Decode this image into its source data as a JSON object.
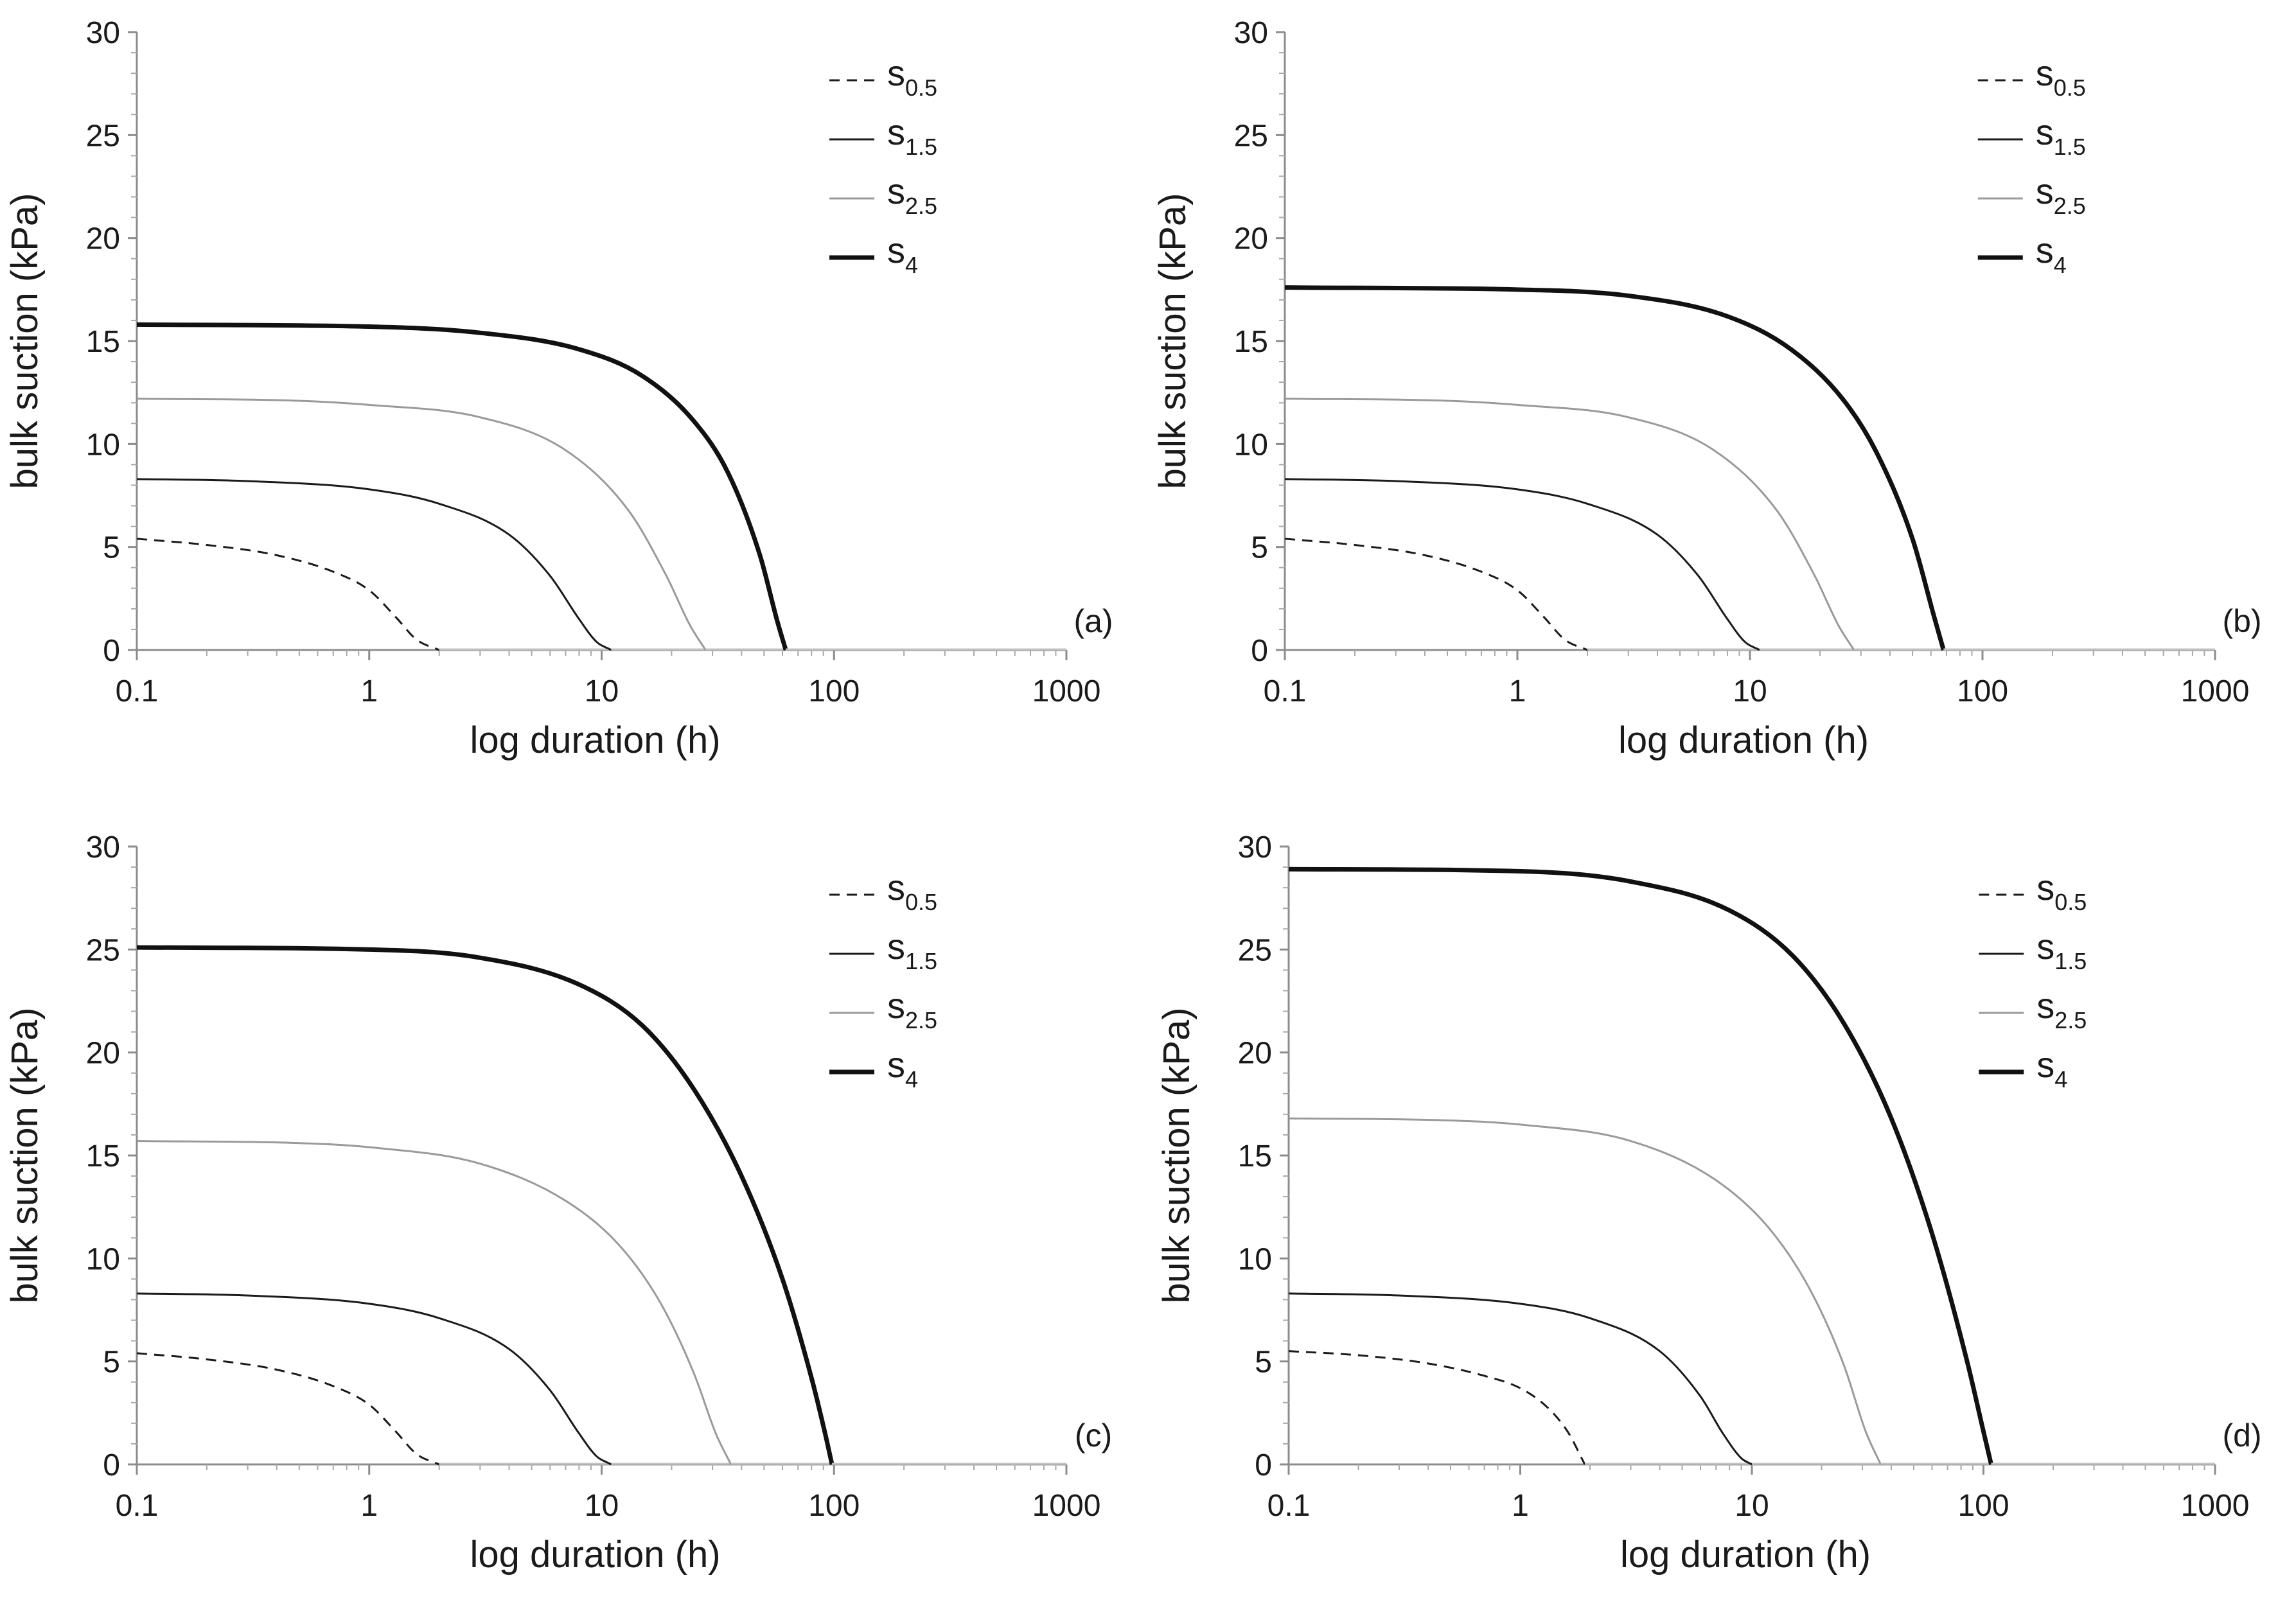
{
  "chart_data": [
    {
      "type": "line",
      "panel_label": "(a)",
      "xlabel": "log duration (h)",
      "ylabel": "bulk suction (kPa)",
      "xscale": "log",
      "xlim": [
        0.1,
        1000
      ],
      "ylim": [
        0,
        30
      ],
      "xticks": [
        "0.1",
        "1",
        "10",
        "100",
        "1000"
      ],
      "yticks": [
        "0",
        "5",
        "10",
        "15",
        "20",
        "25",
        "30"
      ],
      "legend_position": "top-right",
      "series": [
        {
          "name": "s0.5",
          "label_main": "s",
          "label_sub": "0.5",
          "style": "dashed",
          "color": "#1a1a1a",
          "width": 3,
          "x": [
            0.1,
            0.2,
            0.4,
            0.7,
            1.0,
            1.3,
            1.6,
            2.0
          ],
          "y": [
            5.4,
            5.1,
            4.6,
            3.8,
            2.9,
            1.6,
            0.5,
            0
          ]
        },
        {
          "name": "s1.5",
          "label_main": "s",
          "label_sub": "1.5",
          "style": "solid",
          "color": "#1a1a1a",
          "width": 3,
          "x": [
            0.1,
            0.3,
            1.0,
            2.0,
            4.0,
            6.0,
            8.0,
            9.5,
            11.0
          ],
          "y": [
            8.3,
            8.2,
            7.8,
            7.1,
            5.6,
            3.6,
            1.5,
            0.4,
            0
          ]
        },
        {
          "name": "s2.5",
          "label_main": "s",
          "label_sub": "2.5",
          "style": "solid",
          "color": "#9a9a9a",
          "width": 3,
          "x": [
            0.1,
            0.5,
            1.0,
            3.0,
            7.0,
            13.0,
            19.0,
            24.0,
            28.0
          ],
          "y": [
            12.2,
            12.1,
            11.9,
            11.3,
            9.7,
            6.8,
            3.6,
            1.2,
            0
          ]
        },
        {
          "name": "s4",
          "label_main": "s",
          "label_sub": "4",
          "style": "solid",
          "color": "#111111",
          "width": 7,
          "x": [
            0.1,
            1.0,
            3.0,
            8.0,
            15.0,
            25.0,
            35.0,
            48.0,
            57.0,
            62.0
          ],
          "y": [
            15.8,
            15.7,
            15.4,
            14.6,
            13.3,
            11.1,
            8.6,
            4.6,
            1.4,
            0
          ]
        }
      ]
    },
    {
      "type": "line",
      "panel_label": "(b)",
      "xlabel": "log duration (h)",
      "ylabel": "bulk suction (kPa)",
      "xscale": "log",
      "xlim": [
        0.1,
        1000
      ],
      "ylim": [
        0,
        30
      ],
      "xticks": [
        "0.1",
        "1",
        "10",
        "100",
        "1000"
      ],
      "yticks": [
        "0",
        "5",
        "10",
        "15",
        "20",
        "25",
        "30"
      ],
      "legend_position": "top-right",
      "series": [
        {
          "name": "s0.5",
          "label_main": "s",
          "label_sub": "0.5",
          "style": "dashed",
          "color": "#1a1a1a",
          "width": 3,
          "x": [
            0.1,
            0.2,
            0.4,
            0.7,
            1.0,
            1.3,
            1.6,
            2.0
          ],
          "y": [
            5.4,
            5.1,
            4.6,
            3.8,
            2.9,
            1.6,
            0.5,
            0
          ]
        },
        {
          "name": "s1.5",
          "label_main": "s",
          "label_sub": "1.5",
          "style": "solid",
          "color": "#1a1a1a",
          "width": 3,
          "x": [
            0.1,
            0.3,
            1.0,
            2.0,
            4.0,
            6.0,
            8.0,
            9.5,
            11.0
          ],
          "y": [
            8.3,
            8.2,
            7.8,
            7.1,
            5.6,
            3.6,
            1.5,
            0.4,
            0
          ]
        },
        {
          "name": "s2.5",
          "label_main": "s",
          "label_sub": "2.5",
          "style": "solid",
          "color": "#9a9a9a",
          "width": 3,
          "x": [
            0.1,
            0.5,
            1.0,
            3.0,
            7.0,
            13.0,
            19.0,
            24.0,
            28.0
          ],
          "y": [
            12.2,
            12.1,
            11.9,
            11.3,
            9.7,
            6.8,
            3.6,
            1.2,
            0
          ]
        },
        {
          "name": "s4",
          "label_main": "s",
          "label_sub": "4",
          "style": "solid",
          "color": "#111111",
          "width": 7,
          "x": [
            0.1,
            1.0,
            3.0,
            8.0,
            15.0,
            25.0,
            35.0,
            50.0,
            62.0,
            68.0
          ],
          "y": [
            17.6,
            17.5,
            17.2,
            16.2,
            14.6,
            12.2,
            9.6,
            5.4,
            1.6,
            0
          ]
        }
      ]
    },
    {
      "type": "line",
      "panel_label": "(c)",
      "xlabel": "log duration (h)",
      "ylabel": "bulk suction (kPa)",
      "xscale": "log",
      "xlim": [
        0.1,
        1000
      ],
      "ylim": [
        0,
        30
      ],
      "xticks": [
        "0.1",
        "1",
        "10",
        "100",
        "1000"
      ],
      "yticks": [
        "0",
        "5",
        "10",
        "15",
        "20",
        "25",
        "30"
      ],
      "legend_position": "top-right",
      "series": [
        {
          "name": "s0.5",
          "label_main": "s",
          "label_sub": "0.5",
          "style": "dashed",
          "color": "#1a1a1a",
          "width": 3,
          "x": [
            0.1,
            0.2,
            0.4,
            0.7,
            1.0,
            1.3,
            1.6,
            2.0
          ],
          "y": [
            5.4,
            5.1,
            4.6,
            3.8,
            2.9,
            1.6,
            0.5,
            0
          ]
        },
        {
          "name": "s1.5",
          "label_main": "s",
          "label_sub": "1.5",
          "style": "solid",
          "color": "#1a1a1a",
          "width": 3,
          "x": [
            0.1,
            0.3,
            1.0,
            2.0,
            4.0,
            6.0,
            8.0,
            9.5,
            11.0
          ],
          "y": [
            8.3,
            8.2,
            7.8,
            7.1,
            5.6,
            3.6,
            1.5,
            0.4,
            0
          ]
        },
        {
          "name": "s2.5",
          "label_main": "s",
          "label_sub": "2.5",
          "style": "solid",
          "color": "#9a9a9a",
          "width": 3,
          "x": [
            0.1,
            0.5,
            1.0,
            3.0,
            7.0,
            12.0,
            18.0,
            25.0,
            31.0,
            36.0
          ],
          "y": [
            15.7,
            15.6,
            15.4,
            14.6,
            12.8,
            10.6,
            7.8,
            4.4,
            1.5,
            0
          ]
        },
        {
          "name": "s4",
          "label_main": "s",
          "label_sub": "4",
          "style": "solid",
          "color": "#111111",
          "width": 7,
          "x": [
            0.1,
            1.0,
            3.0,
            8.0,
            15.0,
            25.0,
            40.0,
            60.0,
            80.0,
            92.0,
            98.0
          ],
          "y": [
            25.1,
            25.0,
            24.6,
            23.3,
            21.3,
            18.2,
            14.0,
            9.0,
            4.2,
            1.4,
            0
          ]
        }
      ]
    },
    {
      "type": "line",
      "panel_label": "(d)",
      "xlabel": "log duration (h)",
      "ylabel": "bulk suction (kPa)",
      "xscale": "log",
      "xlim": [
        0.1,
        1000
      ],
      "ylim": [
        0,
        30
      ],
      "xticks": [
        "0.1",
        "1",
        "10",
        "100",
        "1000"
      ],
      "yticks": [
        "0",
        "5",
        "10",
        "15",
        "20",
        "25",
        "30"
      ],
      "legend_position": "top-right",
      "series": [
        {
          "name": "s0.5",
          "label_main": "s",
          "label_sub": "0.5",
          "style": "dashed",
          "color": "#1a1a1a",
          "width": 3,
          "x": [
            0.1,
            0.2,
            0.4,
            0.7,
            1.0,
            1.3,
            1.6,
            1.9
          ],
          "y": [
            5.5,
            5.3,
            4.9,
            4.3,
            3.7,
            2.8,
            1.6,
            0
          ]
        },
        {
          "name": "s1.5",
          "label_main": "s",
          "label_sub": "1.5",
          "style": "solid",
          "color": "#1a1a1a",
          "width": 3,
          "x": [
            0.1,
            0.3,
            1.0,
            2.0,
            4.0,
            6.0,
            7.5,
            9.0,
            10.0
          ],
          "y": [
            8.3,
            8.2,
            7.8,
            7.1,
            5.5,
            3.3,
            1.5,
            0.3,
            0
          ]
        },
        {
          "name": "s2.5",
          "label_main": "s",
          "label_sub": "2.5",
          "style": "solid",
          "color": "#9a9a9a",
          "width": 3,
          "x": [
            0.1,
            0.5,
            1.0,
            3.0,
            7.0,
            12.0,
            18.0,
            25.0,
            31.0,
            36.0
          ],
          "y": [
            16.8,
            16.7,
            16.5,
            15.7,
            13.8,
            11.4,
            8.4,
            4.8,
            1.6,
            0
          ]
        },
        {
          "name": "s4",
          "label_main": "s",
          "label_sub": "4",
          "style": "solid",
          "color": "#111111",
          "width": 7,
          "x": [
            0.1,
            1.0,
            3.0,
            8.0,
            15.0,
            25.0,
            40.0,
            60.0,
            85.0,
            100.0,
            108.0
          ],
          "y": [
            28.9,
            28.8,
            28.3,
            26.9,
            24.7,
            21.4,
            16.8,
            11.2,
            5.0,
            1.6,
            0
          ]
        }
      ]
    }
  ]
}
